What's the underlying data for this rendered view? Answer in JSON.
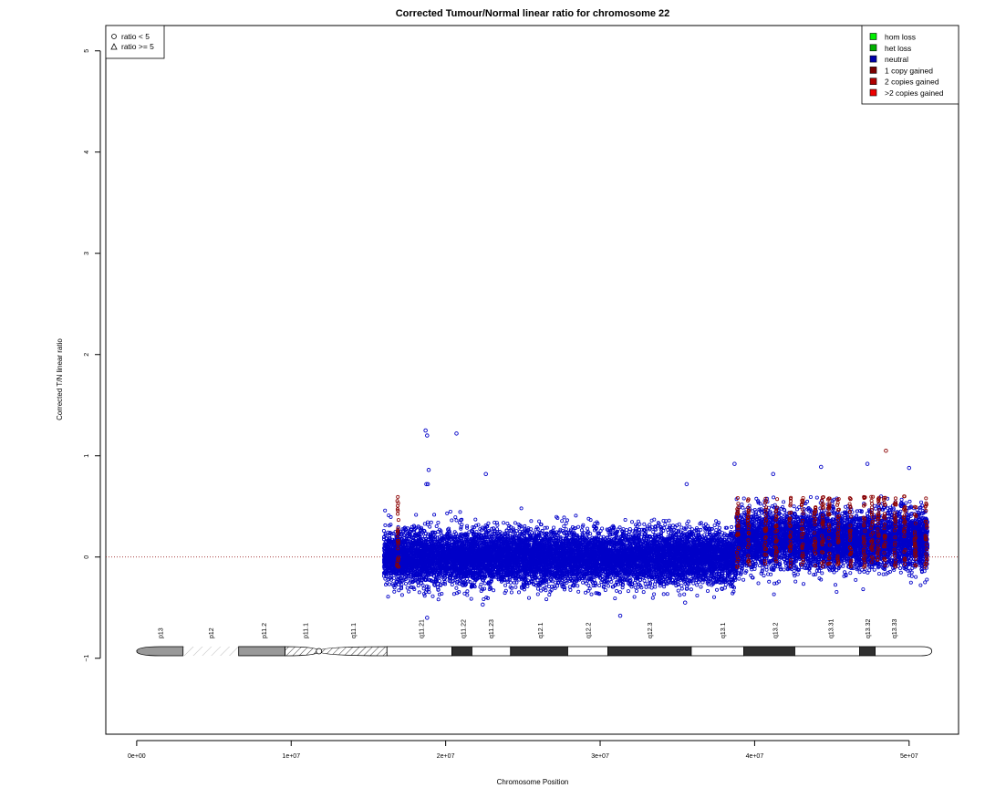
{
  "chart_data": {
    "type": "scatter",
    "title": "Corrected Tumour/Normal linear ratio for chromosome  22",
    "xlabel": "Chromosome Position",
    "ylabel": "Corrected T/N linear ratio",
    "xlim": [
      -2000000,
      53200000
    ],
    "ylim": [
      -1.75,
      5.25
    ],
    "x_ticks": [
      {
        "value": 0,
        "label": "0e+00"
      },
      {
        "value": 10000000,
        "label": "1e+07"
      },
      {
        "value": 20000000,
        "label": "2e+07"
      },
      {
        "value": 30000000,
        "label": "3e+07"
      },
      {
        "value": 40000000,
        "label": "4e+07"
      },
      {
        "value": 50000000,
        "label": "5e+07"
      }
    ],
    "y_ticks": [
      {
        "value": -1,
        "label": "−1"
      },
      {
        "value": 0,
        "label": "0"
      },
      {
        "value": 1,
        "label": "1"
      },
      {
        "value": 2,
        "label": "2"
      },
      {
        "value": 3,
        "label": "3"
      },
      {
        "value": 4,
        "label": "4"
      },
      {
        "value": 5,
        "label": "5"
      }
    ],
    "reference_line": {
      "y": 0,
      "style": "dotted"
    },
    "shape_legend": {
      "placement": "top-left",
      "entries": [
        {
          "symbol": "circle",
          "label": "ratio < 5"
        },
        {
          "symbol": "triangle",
          "label": "ratio >= 5"
        }
      ]
    },
    "color_legend": {
      "placement": "top-right",
      "entries": [
        {
          "label": "hom loss",
          "color": "#00ee00"
        },
        {
          "label": "het loss",
          "color": "#00b000"
        },
        {
          "label": "neutral",
          "color": "#0000aa"
        },
        {
          "label": "1 copy gained",
          "color": "#7a0000"
        },
        {
          "label": "2 copies gained",
          "color": "#b00000"
        },
        {
          "label": ">2 copies gained",
          "color": "#ee0000"
        }
      ]
    },
    "segments": [
      {
        "state": "neutral",
        "color": "#0000c8",
        "x_start": 16000000,
        "x_end": 38800000,
        "mean": 0.0,
        "sd": 0.13
      },
      {
        "state": "neutral",
        "color": "#0000c8",
        "x_start": 38800000,
        "x_end": 51200000,
        "mean": 0.17,
        "sd": 0.14
      }
    ],
    "gained_stripes": {
      "color": "#8b0000",
      "state": "1 copy gained",
      "y_range": [
        -0.1,
        0.6
      ],
      "positions": [
        16900000,
        38900000,
        39600000,
        40700000,
        41400000,
        42300000,
        43100000,
        43900000,
        44400000,
        44800000,
        45400000,
        46200000,
        47100000,
        47600000,
        48000000,
        48400000,
        49100000,
        49700000,
        50400000,
        51100000
      ]
    },
    "outliers": [
      {
        "x": 18700000,
        "y": 1.25
      },
      {
        "x": 18800000,
        "y": 1.2
      },
      {
        "x": 20700000,
        "y": 1.22
      },
      {
        "x": 18900000,
        "y": 0.86
      },
      {
        "x": 22600000,
        "y": 0.82
      },
      {
        "x": 18750000,
        "y": 0.72
      },
      {
        "x": 18850000,
        "y": 0.72
      },
      {
        "x": 35600000,
        "y": 0.72
      },
      {
        "x": 38700000,
        "y": 0.92
      },
      {
        "x": 47300000,
        "y": 0.92
      },
      {
        "x": 44300000,
        "y": 0.89
      },
      {
        "x": 41200000,
        "y": 0.82
      },
      {
        "x": 50000000,
        "y": 0.88
      },
      {
        "x": 48500000,
        "y": 1.05,
        "color": "#8b0000"
      },
      {
        "x": 18800000,
        "y": -0.6
      },
      {
        "x": 31300000,
        "y": -0.58
      },
      {
        "x": 22400000,
        "y": -0.47
      },
      {
        "x": 35500000,
        "y": -0.45
      }
    ],
    "ideogram": {
      "y": -0.93,
      "bands": [
        {
          "name": "p13",
          "start": 0,
          "end": 3000000,
          "stain": "gvar",
          "label_pos": 1500000
        },
        {
          "name": "p12",
          "start": 3000000,
          "end": 6600000,
          "stain": "stalk",
          "label_pos": 4800000
        },
        {
          "name": "p11.2",
          "start": 6600000,
          "end": 9600000,
          "stain": "gvar",
          "label_pos": 8200000
        },
        {
          "name": "p11.1",
          "start": 9600000,
          "end": 11800000,
          "stain": "acen",
          "label_pos": 10900000
        },
        {
          "name": "q11.1",
          "start": 11800000,
          "end": 16200000,
          "stain": "acen",
          "label_pos": 14000000
        },
        {
          "name": "q11.21",
          "start": 16200000,
          "end": 20400000,
          "stain": "gneg",
          "label_pos": 18400000
        },
        {
          "name": "q11.22",
          "start": 20400000,
          "end": 21700000,
          "stain": "gpos",
          "label_pos": 21100000
        },
        {
          "name": "q11.23",
          "start": 21700000,
          "end": 24200000,
          "stain": "gneg",
          "label_pos": 22900000
        },
        {
          "name": "q12.1",
          "start": 24200000,
          "end": 27900000,
          "stain": "gpos",
          "label_pos": 26100000
        },
        {
          "name": "q12.2",
          "start": 27900000,
          "end": 30500000,
          "stain": "gneg",
          "label_pos": 29200000
        },
        {
          "name": "q12.3",
          "start": 30500000,
          "end": 35900000,
          "stain": "gpos",
          "label_pos": 33200000
        },
        {
          "name": "q13.1",
          "start": 35900000,
          "end": 39300000,
          "stain": "gneg",
          "label_pos": 37900000
        },
        {
          "name": "q13.2",
          "start": 39300000,
          "end": 42600000,
          "stain": "gpos",
          "label_pos": 41300000
        },
        {
          "name": "q13.31",
          "start": 42600000,
          "end": 46800000,
          "stain": "gneg",
          "label_pos": 44900000
        },
        {
          "name": "q13.32",
          "start": 46800000,
          "end": 47800000,
          "stain": "gpos",
          "label_pos": 47300000
        },
        {
          "name": "q13.33",
          "start": 47800000,
          "end": 49700000,
          "stain": "gneg",
          "label_pos": 49000000
        }
      ]
    }
  }
}
